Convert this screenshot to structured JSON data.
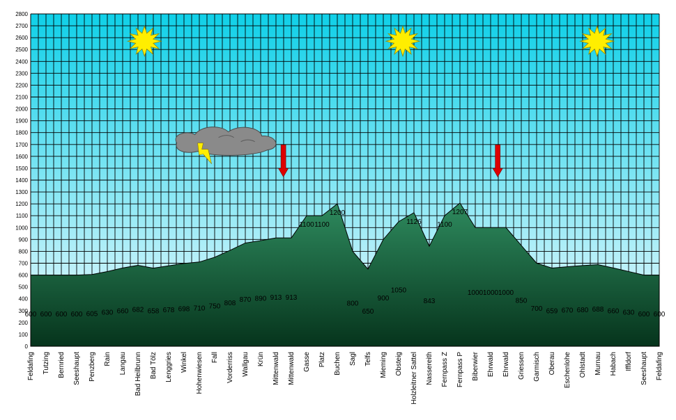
{
  "chart_data": {
    "type": "area",
    "title": "",
    "xlabel": "",
    "ylabel": "",
    "ylim": [
      0,
      2800
    ],
    "y_ticks": [
      0,
      100,
      200,
      300,
      400,
      500,
      600,
      700,
      800,
      900,
      1000,
      1100,
      1200,
      1300,
      1400,
      1500,
      1600,
      1700,
      1800,
      1900,
      2000,
      2100,
      2200,
      2300,
      2400,
      2500,
      2600,
      2700,
      2800
    ],
    "grid": true,
    "categories": [
      "Feldafing",
      "Tutzing",
      "Bernried",
      "Seeshaupt",
      "Penzberg",
      "Rain",
      "Langau",
      "Bad Heilbrunn",
      "Bad Tölz",
      "Lenggries",
      "Winkel",
      "Hohenwiesen",
      "Fall",
      "Vorderriss",
      "Wallgau",
      "Krün",
      "Mittenwald",
      "Mittenwald",
      "Gasse",
      "Platz",
      "Buchen",
      "Sagl",
      "Telfs",
      "Mieming",
      "Obsteig",
      "Holzleitner Sattel",
      "Nassereith",
      "Fernpass Z",
      "Fernpass P",
      "Biberwier",
      "Ehrwald",
      "Ehrwald",
      "Griessen",
      "Garmisch",
      "Oberau",
      "Eschenlohe",
      "Ohlstadt",
      "Murnau",
      "Habach",
      "Iffldorf",
      "Seeshaupt",
      "Feldafing"
    ],
    "values": [
      600,
      600,
      600,
      600,
      605,
      630,
      660,
      682,
      658,
      678,
      698,
      710,
      750,
      808,
      870,
      890,
      913,
      913,
      1100,
      1100,
      1200,
      800,
      650,
      900,
      1050,
      1126,
      843,
      1100,
      1207,
      1000,
      1000,
      1000,
      850,
      700,
      659,
      670,
      680,
      688,
      660,
      630,
      600,
      600
    ],
    "data_labels": [
      "600",
      "600",
      "600",
      "600",
      "605",
      "630",
      "660",
      "682",
      "658",
      "678",
      "698",
      "710",
      "750",
      "808",
      "870",
      "890",
      "913",
      "913",
      "1100",
      "1100",
      "1200",
      "800",
      "650",
      "900",
      "1050",
      "1126",
      "843",
      "1100",
      "1207",
      "1000",
      "1000",
      "1000",
      "850",
      "700",
      "659",
      "670",
      "680",
      "688",
      "660",
      "630",
      "600",
      "600"
    ],
    "colors": {
      "sky_top": "#0fd0e8",
      "sky_bottom": "#f2fbff",
      "terrain_top": "#2e8a5e",
      "terrain_bottom": "#06341c",
      "sun": "#ffee00",
      "arrow": "#dd0000",
      "cloud": "#8a8a8a",
      "lightning": "#ffee00"
    },
    "decorations": {
      "suns": [
        "sun-icon",
        "sun-icon",
        "sun-icon"
      ],
      "cloud": "storm-cloud-icon",
      "arrows": [
        "down-arrow-icon",
        "down-arrow-icon"
      ]
    }
  }
}
